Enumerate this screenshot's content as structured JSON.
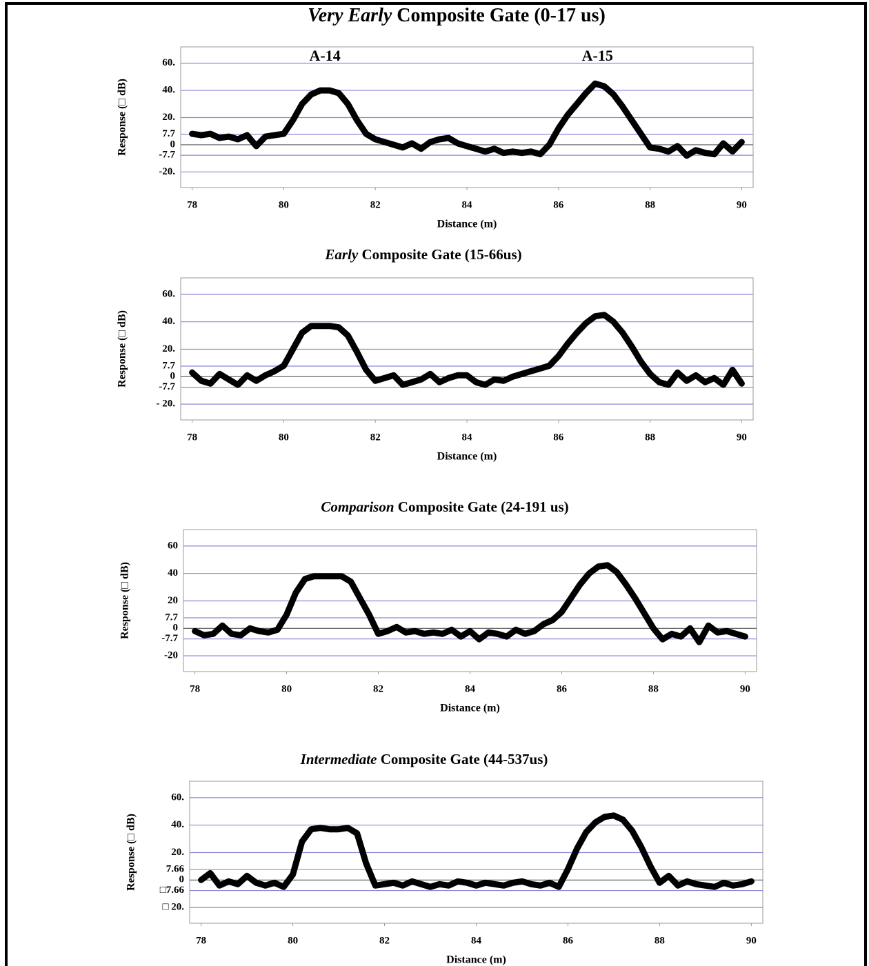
{
  "chart_data": [
    {
      "type": "line",
      "title_emphasis": "Very Early",
      "title": "Composite Gate (0-17 us)",
      "xlabel": "Distance (m)",
      "ylabel": "Response (□ dB)",
      "annotations": [
        "A-14",
        "A-15"
      ],
      "color": "#000000",
      "grid": true,
      "grid_color": "#8a8ad8",
      "zero_line_color": "#555555",
      "xlim": [
        77.75,
        90.25
      ],
      "xticks": [
        78,
        80,
        82,
        84,
        86,
        88,
        90
      ],
      "ylim": [
        -31.5,
        72
      ],
      "yticks": [
        {
          "value": 60,
          "label": "60."
        },
        {
          "value": 40,
          "label": "40."
        },
        {
          "value": 20,
          "label": "20."
        },
        7.7,
        0,
        -7.7,
        {
          "value": -20,
          "label": "-20."
        }
      ],
      "x": [
        78,
        78.2,
        78.4,
        78.6,
        78.8,
        79,
        79.2,
        79.4,
        79.6,
        79.8,
        80,
        80.2,
        80.4,
        80.6,
        80.8,
        81,
        81.2,
        81.4,
        81.6,
        81.8,
        82,
        82.2,
        82.4,
        82.6,
        82.8,
        83,
        83.2,
        83.4,
        83.6,
        83.8,
        84,
        84.2,
        84.4,
        84.6,
        84.8,
        85,
        85.2,
        85.4,
        85.6,
        85.8,
        86,
        86.2,
        86.4,
        86.6,
        86.8,
        87,
        87.2,
        87.4,
        87.6,
        87.8,
        88,
        88.2,
        88.4,
        88.6,
        88.8,
        89,
        89.2,
        89.4,
        89.6,
        89.8,
        90
      ],
      "values": [
        8,
        7,
        8,
        5,
        6,
        4,
        7,
        -1,
        6,
        7,
        8,
        18,
        30,
        37,
        40,
        40,
        38,
        30,
        18,
        8,
        4,
        2,
        0,
        -2,
        1,
        -3,
        2,
        4,
        5,
        1,
        -1,
        -3,
        -5,
        -3,
        -6,
        -5,
        -6,
        -5,
        -7,
        0,
        12,
        22,
        30,
        38,
        45,
        43,
        37,
        28,
        18,
        8,
        -2,
        -3,
        -5,
        -1,
        -8,
        -4,
        -6,
        -7,
        1,
        -5,
        2
      ]
    },
    {
      "type": "line",
      "title_emphasis": "Early",
      "title": "Composite Gate (15-66us)",
      "xlabel": "Distance (m)",
      "ylabel": "Response (□ dB)",
      "color": "#000000",
      "grid": true,
      "grid_color": "#8a8ad8",
      "zero_line_color": "#555555",
      "xlim": [
        77.75,
        90.25
      ],
      "xticks": [
        78,
        80,
        82,
        84,
        86,
        88,
        90
      ],
      "ylim": [
        -31.5,
        72
      ],
      "yticks": [
        {
          "value": 60,
          "label": "60."
        },
        {
          "value": 40,
          "label": "40."
        },
        {
          "value": 20,
          "label": "20."
        },
        7.7,
        0,
        -7.7,
        {
          "value": -20,
          "label": "- 20."
        }
      ],
      "x": [
        78,
        78.2,
        78.4,
        78.6,
        78.8,
        79,
        79.2,
        79.4,
        79.6,
        79.8,
        80,
        80.2,
        80.4,
        80.6,
        80.8,
        81,
        81.2,
        81.4,
        81.6,
        81.8,
        82,
        82.2,
        82.4,
        82.6,
        82.8,
        83,
        83.2,
        83.4,
        83.6,
        83.8,
        84,
        84.2,
        84.4,
        84.6,
        84.8,
        85,
        85.2,
        85.4,
        85.6,
        85.8,
        86,
        86.2,
        86.4,
        86.6,
        86.8,
        87,
        87.2,
        87.4,
        87.6,
        87.8,
        88,
        88.2,
        88.4,
        88.6,
        88.8,
        89,
        89.2,
        89.4,
        89.6,
        89.8,
        90
      ],
      "values": [
        3,
        -3,
        -5,
        2,
        -2,
        -6,
        1,
        -3,
        1,
        4,
        8,
        20,
        32,
        37,
        37,
        37,
        36,
        30,
        18,
        5,
        -3,
        -1,
        1,
        -6,
        -4,
        -2,
        2,
        -4,
        -1,
        1,
        1,
        -4,
        -6,
        -2,
        -3,
        0,
        2,
        4,
        6,
        8,
        15,
        24,
        32,
        39,
        44,
        45,
        40,
        32,
        22,
        11,
        2,
        -4,
        -6,
        3,
        -3,
        1,
        -4,
        -1,
        -6,
        5,
        -5
      ]
    },
    {
      "type": "line",
      "title_emphasis": "Comparison",
      "title": "Composite Gate (24-191 us)",
      "xlabel": "Distance (m)",
      "ylabel": "Response (□ dB)",
      "color": "#000000",
      "grid": true,
      "grid_color": "#8a8ad8",
      "zero_line_color": "#555555",
      "xlim": [
        77.75,
        90.25
      ],
      "xticks": [
        78,
        80,
        82,
        84,
        86,
        88,
        90
      ],
      "ylim": [
        -31.5,
        72
      ],
      "yticks": [
        60,
        40,
        20,
        7.7,
        0,
        -7.7,
        -20
      ],
      "x": [
        78,
        78.2,
        78.4,
        78.6,
        78.8,
        79,
        79.2,
        79.4,
        79.6,
        79.8,
        80,
        80.2,
        80.4,
        80.6,
        80.8,
        81,
        81.2,
        81.4,
        81.6,
        81.8,
        82,
        82.2,
        82.4,
        82.6,
        82.8,
        83,
        83.2,
        83.4,
        83.6,
        83.8,
        84,
        84.2,
        84.4,
        84.6,
        84.8,
        85,
        85.2,
        85.4,
        85.6,
        85.8,
        86,
        86.2,
        86.4,
        86.6,
        86.8,
        87,
        87.2,
        87.4,
        87.6,
        87.8,
        88,
        88.2,
        88.4,
        88.6,
        88.8,
        89,
        89.2,
        89.4,
        89.6,
        89.8,
        90
      ],
      "values": [
        -2,
        -5,
        -4,
        2,
        -4,
        -5,
        0,
        -2,
        -3,
        -1,
        10,
        26,
        36,
        38,
        38,
        38,
        38,
        34,
        22,
        10,
        -4,
        -2,
        1,
        -3,
        -2,
        -4,
        -3,
        -4,
        -1,
        -6,
        -2,
        -8,
        -3,
        -4,
        -6,
        -1,
        -4,
        -2,
        3,
        6,
        12,
        22,
        32,
        40,
        45,
        46,
        41,
        32,
        22,
        11,
        0,
        -8,
        -4,
        -6,
        0,
        -10,
        2,
        -3,
        -2,
        -4,
        -6
      ]
    },
    {
      "type": "line",
      "title_emphasis": "Intermediate",
      "title": "Composite Gate (44-537us)",
      "xlabel": "Distance (m)",
      "ylabel": "Response (□ dB)",
      "color": "#000000",
      "grid": true,
      "grid_color": "#8a8ad8",
      "zero_line_color": "#555555",
      "xlim": [
        77.75,
        90.25
      ],
      "xticks": [
        78,
        80,
        82,
        84,
        86,
        88,
        90
      ],
      "ylim": [
        -31.5,
        72
      ],
      "yticks": [
        {
          "value": 60,
          "label": "60."
        },
        {
          "value": 40,
          "label": "40."
        },
        {
          "value": 20,
          "label": "20."
        },
        7.66,
        0,
        {
          "value": -7.66,
          "label": "□7.66"
        },
        {
          "value": -20,
          "label": "□ 20."
        }
      ],
      "x": [
        78,
        78.2,
        78.4,
        78.6,
        78.8,
        79,
        79.2,
        79.4,
        79.6,
        79.8,
        80,
        80.2,
        80.4,
        80.6,
        80.8,
        81,
        81.2,
        81.4,
        81.6,
        81.8,
        82,
        82.2,
        82.4,
        82.6,
        82.8,
        83,
        83.2,
        83.4,
        83.6,
        83.8,
        84,
        84.2,
        84.4,
        84.6,
        84.8,
        85,
        85.2,
        85.4,
        85.6,
        85.8,
        86,
        86.2,
        86.4,
        86.6,
        86.8,
        87,
        87.2,
        87.4,
        87.6,
        87.8,
        88,
        88.2,
        88.4,
        88.6,
        88.8,
        89,
        89.2,
        89.4,
        89.6,
        89.8,
        90
      ],
      "values": [
        0,
        5,
        -4,
        -1,
        -3,
        3,
        -2,
        -4,
        -2,
        -5,
        4,
        28,
        37,
        38,
        37,
        37,
        38,
        34,
        12,
        -4,
        -3,
        -2,
        -4,
        -1,
        -3,
        -5,
        -3,
        -4,
        -1,
        -2,
        -4,
        -2,
        -3,
        -4,
        -2,
        -1,
        -3,
        -4,
        -2,
        -5,
        8,
        23,
        35,
        42,
        46,
        47,
        44,
        36,
        24,
        10,
        -2,
        3,
        -4,
        -1,
        -3,
        -4,
        -5,
        -2,
        -4,
        -3,
        -1
      ]
    }
  ]
}
